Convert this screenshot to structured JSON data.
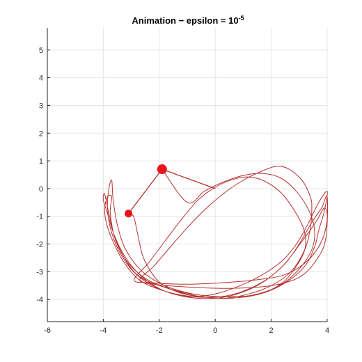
{
  "chart_data": {
    "type": "line",
    "title": "Animation  −  epsilon  =  10",
    "title_superscript": "-5",
    "xlabel": "",
    "ylabel": "",
    "xlim": [
      -6,
      4
    ],
    "ylim": [
      -4.8,
      5.8
    ],
    "x_ticks": [
      -6,
      -4,
      -2,
      0,
      2,
      4
    ],
    "y_ticks": [
      -4,
      -3,
      -2,
      -1,
      0,
      1,
      2,
      3,
      4,
      5
    ],
    "x_tick_labels": [
      "-6",
      "-4",
      "-2",
      "0",
      "2",
      "4"
    ],
    "y_tick_labels": [
      "-4",
      "-3",
      "-2",
      "-1",
      "0",
      "1",
      "2",
      "3",
      "4",
      "5"
    ],
    "grid": true,
    "trace_color": "#b5312f",
    "pendulum_color": "#e8141c",
    "rod_color": "#b5312f",
    "pivot": {
      "x": 0,
      "y": 0
    },
    "mass_1": {
      "x": -1.9,
      "y": 0.7
    },
    "mass_2": {
      "x": -3.1,
      "y": -0.9
    },
    "trace": [
      [
        -3.1,
        -0.9
      ],
      [
        -2.92,
        -1.0
      ],
      [
        -2.78,
        -1.6
      ],
      [
        -2.6,
        -2.4
      ],
      [
        -2.3,
        -3.0
      ],
      [
        -1.9,
        -3.45
      ],
      [
        -1.2,
        -3.78
      ],
      [
        -0.4,
        -3.92
      ],
      [
        0.4,
        -3.95
      ],
      [
        1.2,
        -3.8
      ],
      [
        2.0,
        -3.5
      ],
      [
        2.7,
        -3.0
      ],
      [
        3.2,
        -2.2
      ],
      [
        3.4,
        -1.4
      ],
      [
        3.45,
        -0.7
      ],
      [
        3.4,
        -0.3
      ],
      [
        3.1,
        0.3
      ],
      [
        2.6,
        0.72
      ],
      [
        2.15,
        0.8
      ],
      [
        1.6,
        0.6
      ],
      [
        1.0,
        0.3
      ],
      [
        0.4,
        -0.1
      ],
      [
        -0.2,
        -0.6
      ],
      [
        -0.9,
        -1.3
      ],
      [
        -1.6,
        -2.1
      ],
      [
        -2.2,
        -2.8
      ],
      [
        -2.7,
        -3.3
      ],
      [
        -2.2,
        -3.45
      ],
      [
        -1.0,
        -3.55
      ],
      [
        0.5,
        -3.6
      ],
      [
        2.0,
        -3.5
      ],
      [
        3.0,
        -3.2
      ],
      [
        3.6,
        -2.6
      ],
      [
        3.95,
        -1.8
      ],
      [
        4.0,
        -0.3
      ],
      [
        3.8,
        -0.7
      ],
      [
        3.4,
        -1.3
      ],
      [
        3.0,
        -2.0
      ],
      [
        2.5,
        -2.7
      ],
      [
        1.8,
        -3.3
      ],
      [
        1.0,
        -3.7
      ],
      [
        0.2,
        -3.9
      ],
      [
        -0.8,
        -3.9
      ],
      [
        -1.8,
        -3.7
      ],
      [
        -2.7,
        -3.3
      ],
      [
        -3.3,
        -2.6
      ],
      [
        -3.7,
        -1.8
      ],
      [
        -3.9,
        -1.2
      ],
      [
        -3.95,
        -0.7
      ],
      [
        -3.85,
        -0.3
      ],
      [
        -3.7,
        -0.3
      ],
      [
        -3.75,
        -0.9
      ],
      [
        -3.55,
        -1.9
      ],
      [
        -3.1,
        -2.7
      ],
      [
        -2.4,
        -3.3
      ],
      [
        -1.5,
        -3.65
      ],
      [
        -0.5,
        -3.85
      ],
      [
        0.6,
        -3.9
      ],
      [
        1.6,
        -3.8
      ],
      [
        2.5,
        -3.4
      ],
      [
        3.2,
        -2.8
      ],
      [
        3.55,
        -2.1
      ],
      [
        3.7,
        -1.5
      ],
      [
        3.9,
        -0.8
      ],
      [
        4.0,
        -0.1
      ],
      [
        3.7,
        -0.5
      ],
      [
        3.3,
        -1.3
      ],
      [
        2.9,
        -2.0
      ],
      [
        2.4,
        -2.6
      ],
      [
        1.7,
        -3.1
      ],
      [
        0.9,
        -3.5
      ],
      [
        0.0,
        -3.8
      ],
      [
        -0.9,
        -3.9
      ],
      [
        -1.8,
        -3.7
      ],
      [
        -2.6,
        -3.2
      ],
      [
        -3.2,
        -2.5
      ],
      [
        -3.6,
        -1.7
      ],
      [
        -3.85,
        -0.9
      ],
      [
        -4.0,
        -0.4
      ],
      [
        -3.95,
        -0.2
      ],
      [
        -3.8,
        -0.9
      ],
      [
        -3.5,
        -2.0
      ],
      [
        -2.8,
        -3.1
      ],
      [
        -1.7,
        -3.6
      ],
      [
        -0.5,
        -3.9
      ],
      [
        0.6,
        -3.95
      ],
      [
        1.6,
        -3.8
      ],
      [
        2.4,
        -3.4
      ],
      [
        2.9,
        -2.8
      ],
      [
        3.2,
        -2.2
      ],
      [
        3.2,
        -1.6
      ],
      [
        2.95,
        -1.0
      ],
      [
        2.4,
        -0.2
      ],
      [
        1.8,
        0.25
      ],
      [
        1.2,
        0.42
      ],
      [
        0.6,
        0.32
      ],
      [
        0.0,
        0.05
      ],
      [
        -0.6,
        -0.4
      ],
      [
        -1.2,
        -1.1
      ],
      [
        -1.8,
        -1.9
      ],
      [
        -2.4,
        -2.7
      ],
      [
        -2.9,
        -3.3
      ],
      [
        -2.3,
        -3.4
      ],
      [
        -1.0,
        -3.45
      ],
      [
        0.2,
        -3.4
      ],
      [
        1.4,
        -3.3
      ],
      [
        2.5,
        -3.1
      ],
      [
        3.3,
        -2.6
      ],
      [
        3.8,
        -1.9
      ],
      [
        4.0,
        -1.1
      ],
      [
        3.9,
        -0.7
      ],
      [
        3.6,
        -1.2
      ],
      [
        3.1,
        -1.9
      ],
      [
        2.4,
        -2.8
      ],
      [
        1.5,
        -3.5
      ],
      [
        0.4,
        -3.9
      ],
      [
        -0.7,
        -3.95
      ],
      [
        -1.8,
        -3.7
      ],
      [
        -2.7,
        -3.2
      ],
      [
        -3.3,
        -2.5
      ],
      [
        -3.7,
        -1.6
      ],
      [
        -3.85,
        -0.7
      ],
      [
        -3.8,
        0.0
      ],
      [
        -3.7,
        0.3
      ],
      [
        -3.65,
        -0.4
      ],
      [
        -3.5,
        -1.3
      ],
      [
        -3.2,
        -2.2
      ],
      [
        -2.6,
        -3.0
      ],
      [
        -1.8,
        -3.5
      ],
      [
        -0.8,
        -3.8
      ],
      [
        0.2,
        -3.9
      ],
      [
        1.3,
        -3.85
      ],
      [
        2.3,
        -3.5
      ],
      [
        3.0,
        -2.9
      ],
      [
        3.45,
        -2.2
      ],
      [
        3.55,
        -1.5
      ],
      [
        3.35,
        -0.8
      ],
      [
        2.9,
        -0.1
      ],
      [
        2.3,
        0.4
      ],
      [
        1.6,
        0.55
      ],
      [
        0.9,
        0.45
      ],
      [
        0.2,
        0.2
      ],
      [
        -0.4,
        -0.1
      ],
      [
        -1.0,
        -0.5
      ],
      [
        -1.9,
        0.7
      ]
    ]
  }
}
